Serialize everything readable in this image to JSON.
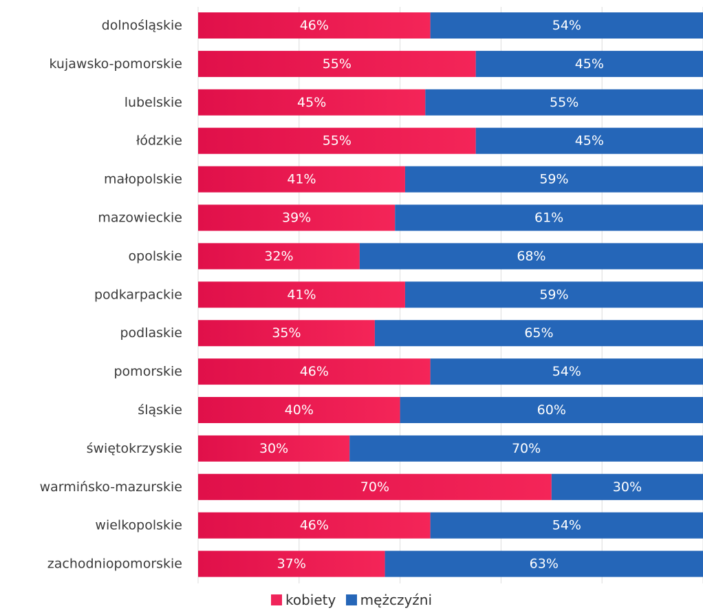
{
  "chart_data": {
    "type": "bar",
    "orientation": "horizontal",
    "stacked": true,
    "percent": true,
    "xlim": [
      0,
      100
    ],
    "grid": true,
    "legend_position": "bottom",
    "categories": [
      "dolnośląskie",
      "kujawsko-pomorskie",
      "lubelskie",
      "łódzkie",
      "małopolskie",
      "mazowieckie",
      "opolskie",
      "podkarpackie",
      "podlaskie",
      "pomorskie",
      "śląskie",
      "świętokrzyskie",
      "warmińsko-mazurskie",
      "wielkopolskie",
      "zachodniopomorskie"
    ],
    "series": [
      {
        "name": "kobiety",
        "color": "#F0245A",
        "values": [
          46,
          55,
          45,
          55,
          41,
          39,
          32,
          41,
          35,
          46,
          40,
          30,
          70,
          46,
          37
        ]
      },
      {
        "name": "mężczyźni",
        "color": "#2566B8",
        "values": [
          54,
          45,
          55,
          45,
          59,
          61,
          68,
          59,
          65,
          54,
          60,
          70,
          30,
          54,
          63
        ]
      }
    ],
    "value_suffix": "%"
  }
}
